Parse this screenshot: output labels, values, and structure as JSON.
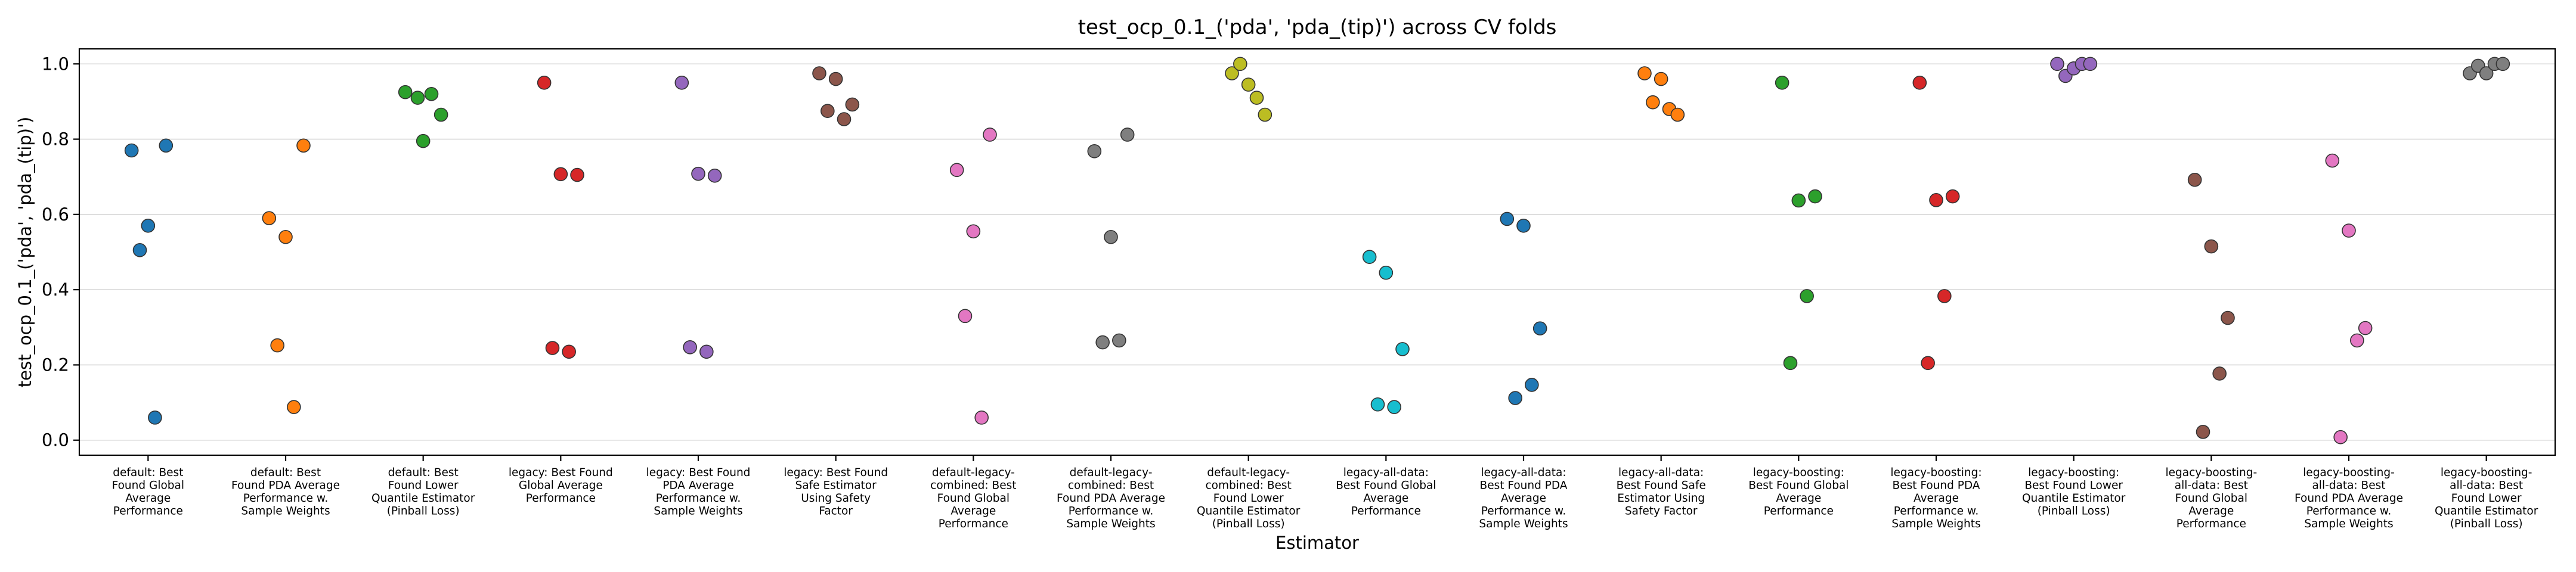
{
  "chart_data": {
    "type": "scatter",
    "title": "test_ocp_0.1_('pda', 'pda_(tip)') across CV folds",
    "xlabel": "Estimator",
    "ylabel": "test_ocp_0.1_('pda', 'pda_(tip)')",
    "ylim": [
      -0.04,
      1.04
    ],
    "yticks": [
      "0.0",
      "0.2",
      "0.4",
      "0.6",
      "0.8",
      "1.0"
    ],
    "ytick_values": [
      0.0,
      0.2,
      0.4,
      0.6,
      0.8,
      1.0
    ],
    "grid": "horizontal",
    "categories": [
      [
        "default: Best",
        "Found Global",
        "Average",
        "Performance"
      ],
      [
        "default: Best",
        "Found PDA Average",
        "Performance w.",
        "Sample Weights"
      ],
      [
        "default: Best",
        "Found Lower",
        "Quantile Estimator",
        "(Pinball Loss)"
      ],
      [
        "legacy: Best Found",
        "Global Average",
        "Performance"
      ],
      [
        "legacy: Best Found",
        "PDA Average",
        "Performance w.",
        "Sample Weights"
      ],
      [
        "legacy: Best Found",
        "Safe Estimator",
        "Using Safety",
        "Factor"
      ],
      [
        "default-legacy-",
        "combined: Best",
        "Found Global",
        "Average",
        "Performance"
      ],
      [
        "default-legacy-",
        "combined: Best",
        "Found PDA Average",
        "Performance w.",
        "Sample Weights"
      ],
      [
        "default-legacy-",
        "combined: Best",
        "Found Lower",
        "Quantile Estimator",
        "(Pinball Loss)"
      ],
      [
        "legacy-all-data:",
        "Best Found Global",
        "Average",
        "Performance"
      ],
      [
        "legacy-all-data:",
        "Best Found PDA",
        "Average",
        "Performance w.",
        "Sample Weights"
      ],
      [
        "legacy-all-data:",
        "Best Found Safe",
        "Estimator Using",
        "Safety Factor"
      ],
      [
        "legacy-boosting:",
        "Best Found Global",
        "Average",
        "Performance"
      ],
      [
        "legacy-boosting:",
        "Best Found PDA",
        "Average",
        "Performance w.",
        "Sample Weights"
      ],
      [
        "legacy-boosting:",
        "Best Found Lower",
        "Quantile Estimator",
        "(Pinball Loss)"
      ],
      [
        "legacy-boosting-",
        "all-data: Best",
        "Found Global",
        "Average",
        "Performance"
      ],
      [
        "legacy-boosting-",
        "all-data: Best",
        "Found PDA Average",
        "Performance w.",
        "Sample Weights"
      ],
      [
        "legacy-boosting-",
        "all-data: Best",
        "Found Lower",
        "Quantile Estimator",
        "(Pinball Loss)"
      ]
    ],
    "colors": [
      "#1f77b4",
      "#ff7f0e",
      "#2ca02c",
      "#d62728",
      "#9467bd",
      "#8c564b",
      "#e377c2",
      "#7f7f7f",
      "#bcbd22",
      "#17becf",
      "#1f77b4",
      "#ff7f0e",
      "#2ca02c",
      "#d62728",
      "#9467bd",
      "#8c564b",
      "#e377c2",
      "#7f7f7f"
    ],
    "series": [
      {
        "name": "default: Best Found Global Average Performance",
        "jitter": [
          -0.12,
          -0.06,
          0.0,
          0.05,
          0.13
        ],
        "values": [
          0.77,
          0.505,
          0.57,
          0.06,
          0.783
        ]
      },
      {
        "name": "default: Best Found PDA Average Performance w. Sample Weights",
        "jitter": [
          -0.12,
          -0.06,
          0.0,
          0.06,
          0.13
        ],
        "values": [
          0.59,
          0.252,
          0.54,
          0.088,
          0.783
        ]
      },
      {
        "name": "default: Best Found Lower Quantile Estimator (Pinball Loss)",
        "jitter": [
          -0.13,
          -0.04,
          0.0,
          0.06,
          0.13
        ],
        "values": [
          0.925,
          0.91,
          0.795,
          0.92,
          0.865
        ]
      },
      {
        "name": "legacy: Best Found Global Average Performance",
        "jitter": [
          -0.12,
          -0.06,
          0.0,
          0.06,
          0.12
        ],
        "values": [
          0.95,
          0.245,
          0.707,
          0.235,
          0.705
        ]
      },
      {
        "name": "legacy: Best Found PDA Average Performance w. Sample Weights",
        "jitter": [
          -0.12,
          -0.06,
          0.0,
          0.06,
          0.12
        ],
        "values": [
          0.95,
          0.247,
          0.708,
          0.235,
          0.703
        ]
      },
      {
        "name": "legacy: Best Found Safe Estimator Using Safety Factor",
        "jitter": [
          -0.12,
          -0.06,
          0.0,
          0.06,
          0.12
        ],
        "values": [
          0.975,
          0.875,
          0.96,
          0.853,
          0.892
        ]
      },
      {
        "name": "default-legacy-combined: Best Found Global Average Performance",
        "jitter": [
          -0.12,
          -0.06,
          0.0,
          0.06,
          0.12
        ],
        "values": [
          0.718,
          0.33,
          0.555,
          0.06,
          0.812
        ]
      },
      {
        "name": "default-legacy-combined: Best Found PDA Average Performance w. Sample Weights",
        "jitter": [
          -0.12,
          -0.06,
          0.0,
          0.06,
          0.12
        ],
        "values": [
          0.768,
          0.26,
          0.54,
          0.265,
          0.812
        ]
      },
      {
        "name": "default-legacy-combined: Best Found Lower Quantile Estimator (Pinball Loss)",
        "jitter": [
          -0.12,
          -0.06,
          0.0,
          0.06,
          0.12
        ],
        "values": [
          0.975,
          1.0,
          0.945,
          0.91,
          0.865
        ]
      },
      {
        "name": "legacy-all-data: Best Found Global Average Performance",
        "jitter": [
          -0.12,
          -0.06,
          0.0,
          0.06,
          0.12
        ],
        "values": [
          0.487,
          0.095,
          0.445,
          0.088,
          0.242
        ]
      },
      {
        "name": "legacy-all-data: Best Found PDA Average Performance w. Sample Weights",
        "jitter": [
          -0.12,
          -0.06,
          0.0,
          0.06,
          0.12
        ],
        "values": [
          0.588,
          0.112,
          0.57,
          0.147,
          0.297
        ]
      },
      {
        "name": "legacy-all-data: Best Found Safe Estimator Using Safety Factor",
        "jitter": [
          -0.12,
          -0.06,
          0.0,
          0.06,
          0.12
        ],
        "values": [
          0.975,
          0.898,
          0.96,
          0.88,
          0.865
        ]
      },
      {
        "name": "legacy-boosting: Best Found Global Average Performance",
        "jitter": [
          -0.12,
          -0.06,
          0.0,
          0.06,
          0.12
        ],
        "values": [
          0.95,
          0.205,
          0.637,
          0.383,
          0.648
        ]
      },
      {
        "name": "legacy-boosting: Best Found PDA Average Performance w. Sample Weights",
        "jitter": [
          -0.12,
          -0.06,
          0.0,
          0.06,
          0.12
        ],
        "values": [
          0.95,
          0.205,
          0.638,
          0.383,
          0.648
        ]
      },
      {
        "name": "legacy-boosting: Best Found Lower Quantile Estimator (Pinball Loss)",
        "jitter": [
          -0.12,
          -0.06,
          0.0,
          0.06,
          0.12
        ],
        "values": [
          1.0,
          0.968,
          0.988,
          1.0,
          1.0
        ]
      },
      {
        "name": "legacy-boosting-all-data: Best Found Global Average Performance",
        "jitter": [
          -0.12,
          -0.06,
          0.0,
          0.06,
          0.12
        ],
        "values": [
          0.692,
          0.022,
          0.515,
          0.177,
          0.325
        ]
      },
      {
        "name": "legacy-boosting-all-data: Best Found PDA Average Performance w. Sample Weights",
        "jitter": [
          -0.12,
          -0.06,
          0.0,
          0.06,
          0.12
        ],
        "values": [
          0.743,
          0.008,
          0.557,
          0.265,
          0.298
        ]
      },
      {
        "name": "legacy-boosting-all-data: Best Found Lower Quantile Estimator (Pinball Loss)",
        "jitter": [
          -0.12,
          -0.06,
          0.0,
          0.06,
          0.12
        ],
        "values": [
          0.975,
          0.995,
          0.975,
          1.0,
          1.0
        ]
      }
    ]
  }
}
